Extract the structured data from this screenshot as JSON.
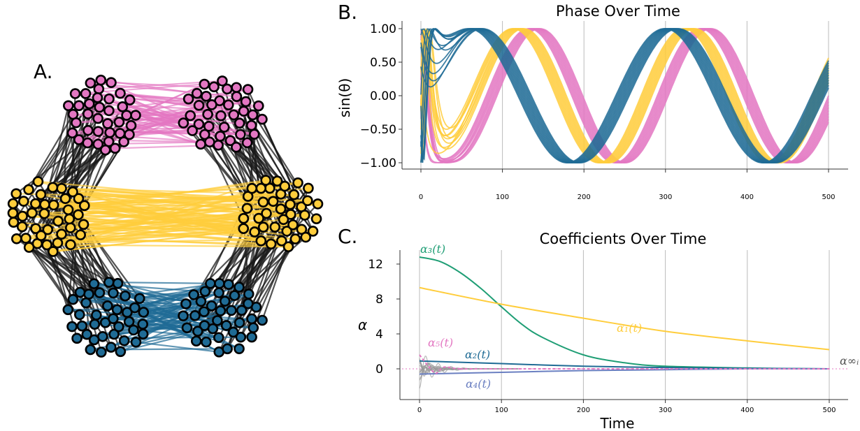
{
  "panels": {
    "a": "A.",
    "b": "B.",
    "c": "C."
  },
  "colors": {
    "pink": "#e377c2",
    "yellow": "#ffcd3c",
    "blue": "#1f6b95",
    "green": "#1f9e75",
    "gray": "#9a9a9a",
    "lavender": "#6a7fc1",
    "edge": "#1a1a1a"
  },
  "network": {
    "clusters": [
      {
        "name": "pink-left",
        "color": "pink"
      },
      {
        "name": "pink-right",
        "color": "pink"
      },
      {
        "name": "yellow-left",
        "color": "yellow"
      },
      {
        "name": "yellow-right",
        "color": "yellow"
      },
      {
        "name": "blue-left",
        "color": "blue"
      },
      {
        "name": "blue-right",
        "color": "blue"
      }
    ]
  },
  "chart_data": [
    {
      "type": "line",
      "panel": "B.",
      "title": "Phase Over Time",
      "xlabel": "",
      "ylabel": "sin(θ)",
      "xlim": [
        0,
        500
      ],
      "ylim": [
        -1,
        1
      ],
      "xticks": [
        0,
        100,
        200,
        300,
        400,
        500
      ],
      "yticks": [
        "1.00",
        "0.50",
        "0.00",
        "−0.50",
        "−1.00"
      ],
      "grid": "vertical",
      "series": [
        {
          "color": "pink",
          "first_peak": [
            140,
            1.0
          ],
          "period": 210
        },
        {
          "color": "yellow",
          "first_peak": [
            120,
            1.0
          ],
          "period": 210
        },
        {
          "color": "blue",
          "first_peak": [
            68,
            1.0
          ],
          "period": 240
        }
      ]
    },
    {
      "type": "line",
      "panel": "C.",
      "title": "Coefficients Over Time",
      "xlabel": "Time",
      "ylabel": "α",
      "xlim": [
        0,
        500
      ],
      "ylim": [
        -3,
        14
      ],
      "xticks": [
        0,
        100,
        200,
        300,
        400,
        500
      ],
      "yticks": [
        12,
        8,
        4,
        0
      ],
      "grid": "vertical",
      "series": [
        {
          "label": "α₃(t)",
          "color": "green",
          "x": [
            0,
            25,
            50,
            75,
            100,
            125,
            150,
            200,
            250,
            300,
            400,
            500
          ],
          "values": [
            12.8,
            12.3,
            11.0,
            9.2,
            7.1,
            5.1,
            3.6,
            1.6,
            0.7,
            0.3,
            0.1,
            0.0
          ]
        },
        {
          "label": "α₁(t)",
          "color": "yellow",
          "x": [
            0,
            100,
            200,
            300,
            400,
            500
          ],
          "values": [
            9.3,
            7.4,
            5.8,
            4.3,
            3.2,
            2.2
          ]
        },
        {
          "label": "α₂(t)",
          "color": "blue",
          "x": [
            0,
            100,
            200,
            300,
            400,
            500
          ],
          "values": [
            0.9,
            0.6,
            0.3,
            0.15,
            0.05,
            0.0
          ]
        },
        {
          "label": "α₄(t)",
          "color": "lavender",
          "x": [
            0,
            100,
            200,
            300,
            400,
            500
          ],
          "values": [
            -0.6,
            -0.4,
            -0.2,
            -0.1,
            0.0,
            0.0
          ]
        },
        {
          "label": "α₅(t)",
          "color": "pink",
          "x": [
            0,
            10,
            20,
            30,
            50,
            100,
            500
          ],
          "values": [
            1.6,
            0.4,
            -0.5,
            0.2,
            0.0,
            0.0,
            0.0
          ]
        }
      ],
      "annotations": [
        "α∞ᵢ"
      ]
    }
  ]
}
